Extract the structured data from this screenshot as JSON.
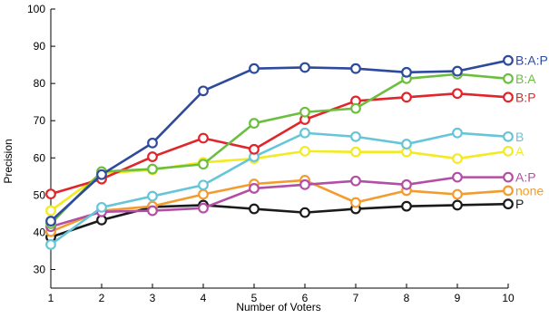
{
  "chart_data": {
    "type": "line",
    "xlabel": "Number of Voters",
    "ylabel": "Precision",
    "x": [
      1,
      2,
      3,
      4,
      5,
      6,
      7,
      8,
      9,
      10
    ],
    "xlim": [
      1,
      10
    ],
    "ylim": [
      25,
      100
    ],
    "yticks": [
      30,
      40,
      50,
      60,
      70,
      80,
      90,
      100
    ],
    "xticks": [
      1,
      2,
      3,
      4,
      5,
      6,
      7,
      8,
      9,
      10
    ],
    "grid": false,
    "legend": "inline labels at right end of each line",
    "series": [
      {
        "name": "B:A:P",
        "color": "#2e4a9e",
        "values": [
          43,
          55.5,
          64,
          78,
          84,
          84.3,
          84,
          83,
          83.3,
          86.2
        ]
      },
      {
        "name": "B:A",
        "color": "#6cbf3e",
        "values": [
          42.3,
          56.3,
          57,
          58.3,
          69.3,
          72.3,
          73.3,
          81.3,
          82.5,
          81.3
        ]
      },
      {
        "name": "B:P",
        "color": "#e0262b",
        "values": [
          50.3,
          54.3,
          60.3,
          65.3,
          62.3,
          70.3,
          75.3,
          76.3,
          77.3,
          76.3
        ]
      },
      {
        "name": "B",
        "color": "#66c5d8",
        "values": [
          36.7,
          46.7,
          49.7,
          52.7,
          60.3,
          66.7,
          65.7,
          63.7,
          66.7,
          65.7
        ]
      },
      {
        "name": "A",
        "color": "#f2ea22",
        "values": [
          45.8,
          55.8,
          56.8,
          58.8,
          59.8,
          61.8,
          61.6,
          61.6,
          59.8,
          61.8
        ]
      },
      {
        "name": "A:P",
        "color": "#b34ea5",
        "values": [
          41.5,
          45.5,
          45.8,
          46.5,
          51.8,
          52.8,
          53.8,
          52.8,
          54.8,
          54.8
        ]
      },
      {
        "name": "none",
        "color": "#f39c2d",
        "values": [
          40.2,
          45.8,
          47,
          50.2,
          53,
          54,
          48,
          51.2,
          50.2,
          51.2
        ]
      },
      {
        "name": "P",
        "color": "#1a1a1a",
        "values": [
          38.7,
          43.3,
          46.8,
          47.3,
          46.3,
          45.3,
          46.3,
          47,
          47.3,
          47.6
        ]
      }
    ]
  }
}
